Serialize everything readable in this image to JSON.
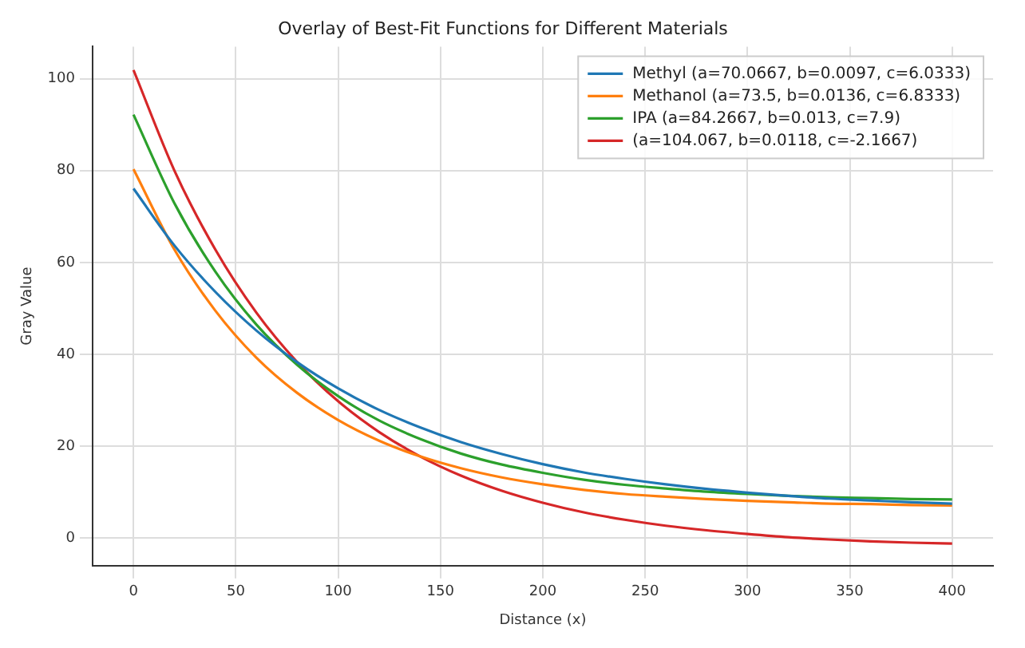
{
  "chart_data": {
    "type": "line",
    "title": "Overlay of Best-Fit Functions for Different Materials",
    "xlabel": "Distance (x)",
    "ylabel": "Gray Value",
    "x": [
      0,
      20,
      40,
      60,
      80,
      100,
      120,
      140,
      160,
      180,
      200,
      220,
      240,
      260,
      280,
      300,
      320,
      340,
      360,
      380,
      400
    ],
    "series": [
      {
        "name": "Methyl (a=70.0667, b=0.0097, c=6.0333)",
        "color": "#1f77b4",
        "values": [
          76.1,
          63.7,
          53.6,
          45.2,
          38.3,
          32.6,
          27.9,
          24.1,
          20.9,
          18.3,
          16.1,
          14.3,
          12.9,
          11.7,
          10.7,
          9.9,
          9.2,
          8.6,
          8.2,
          7.8,
          7.5
        ]
      },
      {
        "name": "Methanol (a=73.5, b=0.0136, c=6.8333)",
        "color": "#ff7f0e",
        "values": [
          80.3,
          62.8,
          49.5,
          39.3,
          31.6,
          25.7,
          21.2,
          17.8,
          15.2,
          13.2,
          11.7,
          10.5,
          9.6,
          9.0,
          8.5,
          8.1,
          7.8,
          7.5,
          7.4,
          7.2,
          7.1
        ]
      },
      {
        "name": "IPA (a=84.2667, b=0.013, c=7.9)",
        "color": "#2ca02c",
        "values": [
          92.2,
          72.9,
          58.0,
          46.5,
          37.7,
          30.9,
          25.6,
          21.6,
          18.4,
          16.0,
          14.2,
          12.7,
          11.6,
          10.8,
          10.1,
          9.6,
          9.2,
          8.9,
          8.7,
          8.5,
          8.4
        ]
      },
      {
        "name": "(a=104.067, b=0.0118, c=-2.1667)",
        "color": "#d62728",
        "values": [
          101.9,
          80.0,
          62.8,
          49.1,
          38.3,
          29.8,
          23.1,
          17.8,
          13.6,
          10.3,
          7.7,
          5.6,
          4.0,
          2.7,
          1.7,
          0.9,
          0.2,
          -0.3,
          -0.7,
          -1.0,
          -1.2
        ]
      }
    ],
    "xlim": [
      -20,
      420
    ],
    "ylim": [
      -6,
      107
    ],
    "xticks": [
      0,
      50,
      100,
      150,
      200,
      250,
      300,
      350,
      400
    ],
    "yticks": [
      0,
      20,
      40,
      60,
      80,
      100
    ],
    "grid": true,
    "legend": "top right",
    "marker": "none",
    "line_style": "solid"
  }
}
